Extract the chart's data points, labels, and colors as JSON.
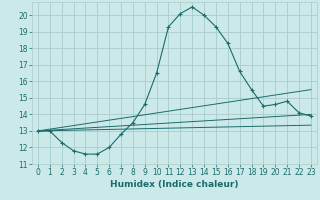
{
  "title": "",
  "xlabel": "Humidex (Indice chaleur)",
  "bg_color": "#cce9e9",
  "grid_color": "#aacccc",
  "line_color": "#1a6b6b",
  "xlim": [
    -0.5,
    23.5
  ],
  "ylim": [
    11,
    20.8
  ],
  "xticks": [
    0,
    1,
    2,
    3,
    4,
    5,
    6,
    7,
    8,
    9,
    10,
    11,
    12,
    13,
    14,
    15,
    16,
    17,
    18,
    19,
    20,
    21,
    22,
    23
  ],
  "yticks": [
    11,
    12,
    13,
    14,
    15,
    16,
    17,
    18,
    19,
    20
  ],
  "series1_x": [
    0,
    1,
    2,
    3,
    4,
    5,
    6,
    7,
    8,
    9,
    10,
    11,
    12,
    13,
    14,
    15,
    16,
    17,
    18,
    19,
    20,
    21,
    22,
    23
  ],
  "series1_y": [
    13.0,
    13.0,
    12.3,
    11.8,
    11.6,
    11.6,
    12.0,
    12.8,
    13.5,
    14.6,
    16.5,
    19.3,
    20.1,
    20.5,
    20.0,
    19.3,
    18.3,
    16.6,
    15.5,
    14.5,
    14.6,
    14.8,
    14.1,
    13.9
  ],
  "series2_x": [
    0,
    23
  ],
  "series2_y": [
    13.0,
    14.0
  ],
  "series3_x": [
    0,
    23
  ],
  "series3_y": [
    13.0,
    13.35
  ],
  "series4_x": [
    0,
    23
  ],
  "series4_y": [
    13.0,
    15.5
  ]
}
